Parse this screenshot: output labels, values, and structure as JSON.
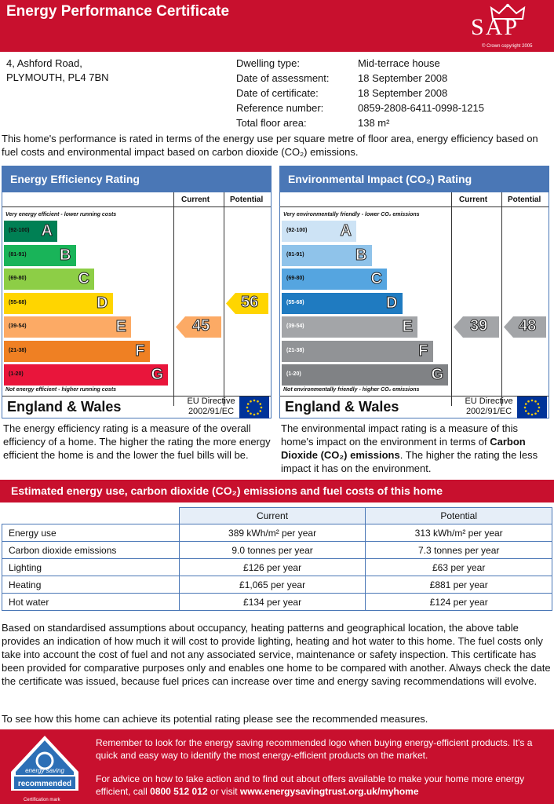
{
  "header": {
    "title": "Energy Performance Certificate",
    "logo_text": "SAP",
    "logo_copyright": "© Crown copyright 2005"
  },
  "address": {
    "line1": "4, Ashford Road,",
    "line2": "PLYMOUTH, PL4 7BN"
  },
  "details": [
    {
      "label": "Dwelling type:",
      "value": "Mid-terrace house"
    },
    {
      "label": "Date of assessment:",
      "value": "18 September 2008"
    },
    {
      "label": "Date of certificate:",
      "value": "18 September 2008"
    },
    {
      "label": "Reference number:",
      "value": "0859-2808-6411-0998-1215"
    },
    {
      "label": "Total floor area:",
      "value": "138 m²"
    }
  ],
  "intro": "This home's performance is rated in terms of the energy use per square metre of floor area, energy efficiency based on fuel costs and environmental impact based on carbon dioxide (CO₂) emissions.",
  "efficiency": {
    "title": "Energy Efficiency Rating",
    "col_current": "Current",
    "col_potential": "Potential",
    "top_caption": "Very energy efficient - lower running costs",
    "bottom_caption": "Not energy efficient - higher running costs",
    "bands": [
      {
        "range": "(92-100)",
        "letter": "A",
        "color": "#008054"
      },
      {
        "range": "(81-91)",
        "letter": "B",
        "color": "#19b459"
      },
      {
        "range": "(69-80)",
        "letter": "C",
        "color": "#8dce46"
      },
      {
        "range": "(55-68)",
        "letter": "D",
        "color": "#ffd500"
      },
      {
        "range": "(39-54)",
        "letter": "E",
        "color": "#fcaa65"
      },
      {
        "range": "(21-38)",
        "letter": "F",
        "color": "#ef8023"
      },
      {
        "range": "(1-20)",
        "letter": "G",
        "color": "#e9153b"
      }
    ],
    "current": {
      "value": "45",
      "band": 4,
      "color": "#fcaa65"
    },
    "potential": {
      "value": "56",
      "band": 3,
      "color": "#ffd500"
    },
    "region": "England & Wales",
    "directive_line1": "EU Directive",
    "directive_line2": "2002/91/EC",
    "explanation": "The energy efficiency rating is a measure of the overall efficiency of a home. The higher the rating the more energy efficient the home is and the lower the fuel bills will be."
  },
  "environmental": {
    "title": "Environmental Impact (CO₂) Rating",
    "col_current": "Current",
    "col_potential": "Potential",
    "top_caption": "Very environmentally friendly - lower CO₂ emissions",
    "bottom_caption": "Not environmentally friendly - higher CO₂ emissions",
    "bands": [
      {
        "range": "(92-100)",
        "letter": "A",
        "color": "#cde3f5"
      },
      {
        "range": "(81-91)",
        "letter": "B",
        "color": "#8fc3ea"
      },
      {
        "range": "(69-80)",
        "letter": "C",
        "color": "#55a5e0"
      },
      {
        "range": "(55-68)",
        "letter": "D",
        "color": "#1f7bc1"
      },
      {
        "range": "(39-54)",
        "letter": "E",
        "color": "#a3a5a8"
      },
      {
        "range": "(21-38)",
        "letter": "F",
        "color": "#919396"
      },
      {
        "range": "(1-20)",
        "letter": "G",
        "color": "#808285"
      }
    ],
    "current": {
      "value": "39",
      "band": 4,
      "color": "#a3a5a8"
    },
    "potential": {
      "value": "48",
      "band": 4,
      "color": "#a3a5a8"
    },
    "region": "England & Wales",
    "directive_line1": "EU Directive",
    "directive_line2": "2002/91/EC",
    "explanation_parts": [
      "The environmental impact rating is a measure of this home's impact on the environment in terms of ",
      "Carbon Dioxide (CO₂) emissions",
      ". The higher the rating the less impact it has on the environment."
    ]
  },
  "estimates": {
    "title": "Estimated energy use, carbon dioxide (CO₂) emissions and fuel costs of this home",
    "col_current": "Current",
    "col_potential": "Potential",
    "rows": [
      {
        "label": "Energy use",
        "current": "389 kWh/m² per year",
        "potential": "313 kWh/m² per year"
      },
      {
        "label": "Carbon dioxide emissions",
        "current": "9.0 tonnes per year",
        "potential": "7.3 tonnes per year"
      },
      {
        "label": "Lighting",
        "current": "£126 per year",
        "potential": "£63 per year"
      },
      {
        "label": "Heating",
        "current": "£1,065 per year",
        "potential": "£881 per year"
      },
      {
        "label": "Hot water",
        "current": "£134 per year",
        "potential": "£124 per year"
      }
    ]
  },
  "footer_text": "Based on standardised assumptions about occupancy, heating patterns and geographical location, the above table provides an indication of how much it will cost to provide lighting, heating and hot water to this home. The fuel costs only take into account the cost of fuel and not any associated service, maintenance or safety inspection. This certificate has been provided for comparative purposes only and enables one home to be compared with another. Always check the date the certificate was issued, because fuel prices can increase over time and energy saving recommendations will evolve.",
  "see_measures": "To see how this home can achieve its potential rating please see the recommended measures.",
  "bottom": {
    "logo_line1": "energy saving",
    "logo_line2": "recommended",
    "cert_mark": "Certification mark",
    "text1": "Remember to look for the energy saving recommended logo when buying energy-efficient products. It's a quick and easy way to identify the most energy-efficient products on the market.",
    "text2_pre": "For advice on how to take action and to find out about offers available to make your home more energy efficient, call ",
    "phone": "0800 512 012",
    "text2_mid": " or visit ",
    "url": "www.energysavingtrust.org.uk/myhome"
  }
}
